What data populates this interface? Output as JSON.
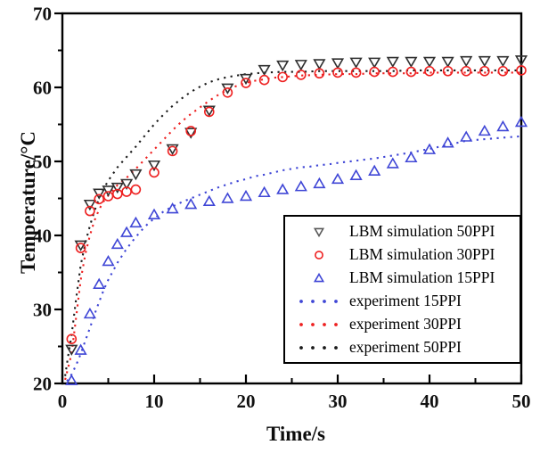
{
  "chart_data": {
    "type": "line",
    "title": "",
    "xlabel": "Time/s",
    "ylabel": "Temperature/°C",
    "xlim": [
      0,
      50
    ],
    "ylim": [
      20,
      70
    ],
    "x_major_ticks": [
      0,
      10,
      20,
      30,
      40,
      50
    ],
    "x_minor_ticks": [
      5,
      15,
      25,
      35,
      45
    ],
    "y_major_ticks": [
      20,
      30,
      40,
      50,
      60,
      70
    ],
    "y_minor_ticks": [
      25,
      35,
      45,
      55,
      65
    ],
    "grid": false,
    "legend_position": "lower right",
    "colors": {
      "black_marker": "#2f2f2f",
      "red": "#ee2020",
      "blue": "#3f46d6",
      "black_dotted": "#1a1a1a",
      "frame": "#000000",
      "tick_label": "#111111"
    },
    "series": [
      {
        "name": "LBM simulation 50PPI",
        "style": "scatter",
        "marker": "triangle-down",
        "color": "#2f2f2f",
        "points": [
          [
            1,
            24.6
          ],
          [
            2,
            38.7
          ],
          [
            3,
            44.2
          ],
          [
            4,
            45.7
          ],
          [
            5,
            46.1
          ],
          [
            6,
            46.5
          ],
          [
            7,
            47.0
          ],
          [
            8,
            48.3
          ],
          [
            10,
            49.5
          ],
          [
            12,
            51.7
          ],
          [
            14,
            53.9
          ],
          [
            16,
            56.9
          ],
          [
            18,
            59.9
          ],
          [
            20,
            61.2
          ],
          [
            22,
            62.4
          ],
          [
            24,
            63.0
          ],
          [
            26,
            63.1
          ],
          [
            28,
            63.2
          ],
          [
            30,
            63.3
          ],
          [
            32,
            63.4
          ],
          [
            34,
            63.4
          ],
          [
            36,
            63.5
          ],
          [
            38,
            63.5
          ],
          [
            40,
            63.5
          ],
          [
            42,
            63.5
          ],
          [
            44,
            63.6
          ],
          [
            46,
            63.6
          ],
          [
            48,
            63.6
          ],
          [
            50,
            63.7
          ]
        ]
      },
      {
        "name": "LBM simulation 30PPI",
        "style": "scatter",
        "marker": "circle",
        "color": "#ee2020",
        "points": [
          [
            1,
            26.0
          ],
          [
            2,
            38.3
          ],
          [
            3,
            43.3
          ],
          [
            4,
            44.9
          ],
          [
            5,
            45.3
          ],
          [
            6,
            45.6
          ],
          [
            7,
            45.9
          ],
          [
            8,
            46.2
          ],
          [
            10,
            48.5
          ],
          [
            12,
            51.4
          ],
          [
            14,
            54.1
          ],
          [
            16,
            56.7
          ],
          [
            18,
            59.3
          ],
          [
            20,
            60.6
          ],
          [
            22,
            61.0
          ],
          [
            24,
            61.4
          ],
          [
            26,
            61.7
          ],
          [
            28,
            61.9
          ],
          [
            30,
            62.0
          ],
          [
            32,
            62.0
          ],
          [
            34,
            62.1
          ],
          [
            36,
            62.1
          ],
          [
            38,
            62.1
          ],
          [
            40,
            62.2
          ],
          [
            42,
            62.2
          ],
          [
            44,
            62.2
          ],
          [
            46,
            62.2
          ],
          [
            48,
            62.2
          ],
          [
            50,
            62.3
          ]
        ]
      },
      {
        "name": "LBM simulation 15PPI",
        "style": "scatter",
        "marker": "triangle-up",
        "color": "#3f46d6",
        "points": [
          [
            1,
            20.4
          ],
          [
            2,
            24.5
          ],
          [
            3,
            29.4
          ],
          [
            4,
            33.4
          ],
          [
            5,
            36.5
          ],
          [
            6,
            38.8
          ],
          [
            7,
            40.4
          ],
          [
            8,
            41.7
          ],
          [
            10,
            42.8
          ],
          [
            12,
            43.6
          ],
          [
            14,
            44.2
          ],
          [
            16,
            44.6
          ],
          [
            18,
            45.0
          ],
          [
            20,
            45.3
          ],
          [
            22,
            45.8
          ],
          [
            24,
            46.2
          ],
          [
            26,
            46.6
          ],
          [
            28,
            47.0
          ],
          [
            30,
            47.6
          ],
          [
            32,
            48.1
          ],
          [
            34,
            48.7
          ],
          [
            36,
            49.7
          ],
          [
            38,
            50.5
          ],
          [
            40,
            51.6
          ],
          [
            42,
            52.5
          ],
          [
            44,
            53.3
          ],
          [
            46,
            54.1
          ],
          [
            48,
            54.7
          ],
          [
            50,
            55.3
          ]
        ]
      },
      {
        "name": "experiment 15PPI",
        "style": "dotted",
        "color": "#3f46d6",
        "points": [
          [
            0.5,
            20.3
          ],
          [
            1,
            21.2
          ],
          [
            1.5,
            22.5
          ],
          [
            2,
            24.0
          ],
          [
            2.5,
            25.8
          ],
          [
            3,
            27.5
          ],
          [
            3.5,
            29.3
          ],
          [
            4,
            31.0
          ],
          [
            4.5,
            32.6
          ],
          [
            5,
            34.0
          ],
          [
            6,
            36.3
          ],
          [
            7,
            38.2
          ],
          [
            8,
            39.8
          ],
          [
            9,
            41.2
          ],
          [
            10,
            42.3
          ],
          [
            11,
            43.2
          ],
          [
            12,
            43.9
          ],
          [
            13,
            44.5
          ],
          [
            14,
            45.0
          ],
          [
            15,
            45.5
          ],
          [
            16,
            46.0
          ],
          [
            17,
            46.5
          ],
          [
            18,
            46.9
          ],
          [
            19,
            47.3
          ],
          [
            20,
            47.6
          ],
          [
            21,
            48.0
          ],
          [
            22,
            48.2
          ],
          [
            23,
            48.5
          ],
          [
            24,
            48.8
          ],
          [
            25,
            49.0
          ],
          [
            26,
            49.2
          ],
          [
            27,
            49.3
          ],
          [
            28,
            49.5
          ],
          [
            29,
            49.6
          ],
          [
            30,
            49.8
          ],
          [
            32,
            50.1
          ],
          [
            34,
            50.4
          ],
          [
            36,
            50.8
          ],
          [
            38,
            51.2
          ],
          [
            40,
            51.7
          ],
          [
            42,
            52.2
          ],
          [
            44,
            52.8
          ],
          [
            46,
            53.0
          ],
          [
            48,
            53.2
          ],
          [
            50,
            53.4
          ]
        ]
      },
      {
        "name": "experiment 30PPI",
        "style": "dotted",
        "color": "#ee2020",
        "points": [
          [
            0.3,
            20.5
          ],
          [
            0.6,
            22.0
          ],
          [
            1,
            24.0
          ],
          [
            1.5,
            29.0
          ],
          [
            2,
            34.0
          ],
          [
            2.5,
            37.5
          ],
          [
            3,
            40.0
          ],
          [
            3.5,
            42.0
          ],
          [
            4,
            43.5
          ],
          [
            4.5,
            44.6
          ],
          [
            5,
            45.4
          ],
          [
            6,
            46.8
          ],
          [
            7,
            47.8
          ],
          [
            8,
            49.0
          ],
          [
            9,
            50.3
          ],
          [
            10,
            51.6
          ],
          [
            11,
            52.9
          ],
          [
            12,
            54.2
          ],
          [
            13,
            55.4
          ],
          [
            14,
            56.4
          ],
          [
            15,
            57.3
          ],
          [
            16,
            58.2
          ],
          [
            17,
            59.0
          ],
          [
            18,
            59.7
          ],
          [
            19,
            60.2
          ],
          [
            20,
            60.6
          ],
          [
            21,
            60.9
          ],
          [
            22,
            61.1
          ],
          [
            23,
            61.3
          ],
          [
            24,
            61.4
          ],
          [
            26,
            61.6
          ],
          [
            28,
            61.7
          ],
          [
            30,
            61.8
          ],
          [
            32,
            61.8
          ],
          [
            34,
            61.9
          ],
          [
            36,
            61.9
          ],
          [
            38,
            61.9
          ],
          [
            40,
            62.0
          ],
          [
            42,
            62.0
          ],
          [
            44,
            62.0
          ],
          [
            46,
            62.0
          ],
          [
            48,
            62.0
          ],
          [
            50,
            62.0
          ]
        ]
      },
      {
        "name": "experiment 50PPI",
        "style": "dotted",
        "color": "#1a1a1a",
        "points": [
          [
            0.3,
            21.0
          ],
          [
            0.6,
            23.5
          ],
          [
            1,
            26.5
          ],
          [
            1.5,
            31.5
          ],
          [
            2,
            36.0
          ],
          [
            2.5,
            39.0
          ],
          [
            3,
            41.3
          ],
          [
            3.5,
            43.3
          ],
          [
            4,
            45.0
          ],
          [
            4.5,
            46.3
          ],
          [
            5,
            47.4
          ],
          [
            6,
            49.2
          ],
          [
            7,
            50.6
          ],
          [
            8,
            52.0
          ],
          [
            9,
            53.5
          ],
          [
            10,
            55.0
          ],
          [
            11,
            56.3
          ],
          [
            12,
            57.5
          ],
          [
            13,
            58.5
          ],
          [
            14,
            59.4
          ],
          [
            15,
            60.1
          ],
          [
            16,
            60.7
          ],
          [
            17,
            61.1
          ],
          [
            18,
            61.4
          ],
          [
            19,
            61.6
          ],
          [
            20,
            61.8
          ],
          [
            22,
            62.0
          ],
          [
            24,
            62.1
          ],
          [
            26,
            62.1
          ],
          [
            28,
            62.2
          ],
          [
            30,
            62.2
          ],
          [
            32,
            62.2
          ],
          [
            34,
            62.2
          ],
          [
            36,
            62.2
          ],
          [
            38,
            62.3
          ],
          [
            40,
            62.3
          ],
          [
            42,
            62.3
          ],
          [
            44,
            62.3
          ],
          [
            46,
            62.3
          ],
          [
            48,
            62.3
          ],
          [
            50,
            62.3
          ]
        ]
      }
    ],
    "legend": {
      "entries": [
        {
          "label": "LBM simulation 50PPI",
          "series_index": 0
        },
        {
          "label": "LBM simulation 30PPI",
          "series_index": 1
        },
        {
          "label": "LBM simulation 15PPI",
          "series_index": 2
        },
        {
          "label": "experiment 15PPI",
          "series_index": 3
        },
        {
          "label": "experiment 30PPI",
          "series_index": 4
        },
        {
          "label": "experiment 50PPI",
          "series_index": 5
        }
      ]
    }
  }
}
